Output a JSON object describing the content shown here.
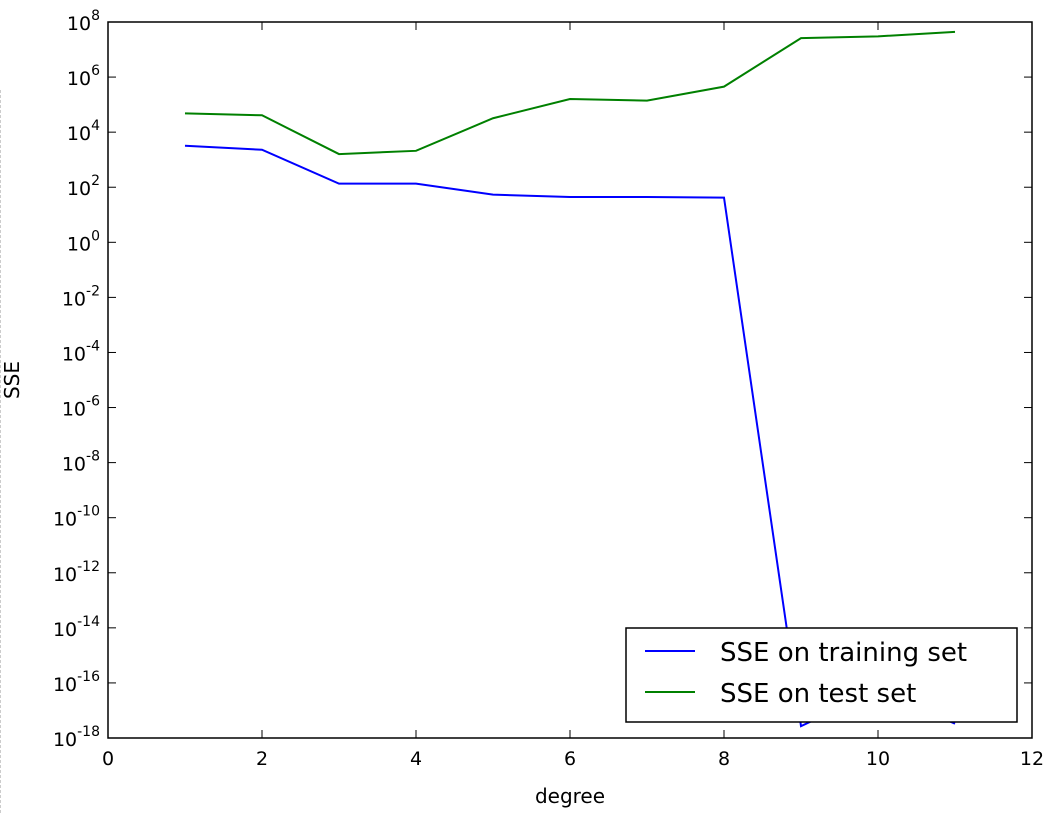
{
  "chart_data": {
    "type": "line",
    "title": "",
    "xlabel": "degree",
    "ylabel": "SSE",
    "xlim": [
      0,
      12
    ],
    "ylim": [
      1e-18,
      100000000.0
    ],
    "yscale": "log",
    "grid": false,
    "legend_placement": "lower-right",
    "x_ticks": [
      "0",
      "2",
      "4",
      "6",
      "8",
      "10",
      "12"
    ],
    "y_tick_exponents": [
      "8",
      "6",
      "4",
      "2",
      "0",
      "-2",
      "-4",
      "-6",
      "-8",
      "-10",
      "-12",
      "-14",
      "-16",
      "-18"
    ],
    "x": [
      1,
      2,
      3,
      4,
      5,
      6,
      7,
      8,
      9,
      10,
      11
    ],
    "series": [
      {
        "name": "SSE on training set",
        "color": "#0000ff",
        "values": [
          3200,
          2300,
          135,
          135,
          54,
          44,
          44,
          42,
          2.7e-18,
          5.6e-17,
          3.3e-18
        ]
      },
      {
        "name": "SSE on test set",
        "color": "#008000",
        "values": [
          48000,
          41000,
          1600,
          2100,
          32000,
          160000,
          140000,
          450000,
          26000000,
          30000000,
          44000000
        ]
      }
    ]
  }
}
